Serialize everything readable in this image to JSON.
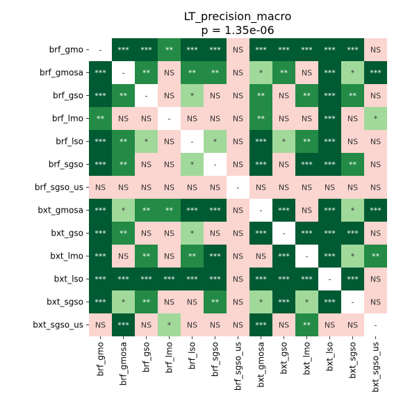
{
  "chart_data": {
    "type": "heatmap",
    "title": "LT_precision_macro",
    "subtitle": "p = 1.35e-06",
    "labels": [
      "brf_gmo",
      "brf_gmosa",
      "brf_gso",
      "brf_lmo",
      "brf_lso",
      "brf_sgso",
      "brf_sgso_us",
      "bxt_gmosa",
      "bxt_gso",
      "bxt_lmo",
      "bxt_lso",
      "bxt_sgso",
      "bxt_sgso_us"
    ],
    "matrix": [
      [
        "-",
        "***",
        "***",
        "**",
        "***",
        "***",
        "NS",
        "***",
        "***",
        "***",
        "***",
        "***",
        "NS"
      ],
      [
        "***",
        "-",
        "**",
        "NS",
        "**",
        "**",
        "NS",
        "*",
        "**",
        "NS",
        "***",
        "*",
        "***"
      ],
      [
        "***",
        "**",
        "-",
        "NS",
        "*",
        "NS",
        "NS",
        "**",
        "NS",
        "**",
        "***",
        "**",
        "NS"
      ],
      [
        "**",
        "NS",
        "NS",
        "-",
        "NS",
        "NS",
        "NS",
        "**",
        "NS",
        "NS",
        "***",
        "NS",
        "*"
      ],
      [
        "***",
        "**",
        "*",
        "NS",
        "-",
        "*",
        "NS",
        "***",
        "*",
        "**",
        "***",
        "NS",
        "NS"
      ],
      [
        "***",
        "**",
        "NS",
        "NS",
        "*",
        "-",
        "NS",
        "***",
        "NS",
        "***",
        "***",
        "**",
        "NS"
      ],
      [
        "NS",
        "NS",
        "NS",
        "NS",
        "NS",
        "NS",
        "-",
        "NS",
        "NS",
        "NS",
        "NS",
        "NS",
        "NS"
      ],
      [
        "***",
        "*",
        "**",
        "**",
        "***",
        "***",
        "NS",
        "-",
        "***",
        "NS",
        "***",
        "*",
        "***"
      ],
      [
        "***",
        "**",
        "NS",
        "NS",
        "*",
        "NS",
        "NS",
        "***",
        "-",
        "***",
        "***",
        "***",
        "NS"
      ],
      [
        "***",
        "NS",
        "**",
        "NS",
        "**",
        "***",
        "NS",
        "NS",
        "***",
        "-",
        "***",
        "*",
        "**"
      ],
      [
        "***",
        "***",
        "***",
        "***",
        "***",
        "***",
        "NS",
        "***",
        "***",
        "***",
        "-",
        "***",
        "NS"
      ],
      [
        "***",
        "*",
        "**",
        "NS",
        "NS",
        "**",
        "NS",
        "*",
        "***",
        "*",
        "***",
        "-",
        "NS"
      ],
      [
        "NS",
        "***",
        "NS",
        "*",
        "NS",
        "NS",
        "NS",
        "***",
        "NS",
        "**",
        "NS",
        "NS",
        "-"
      ]
    ],
    "colors": {
      "***": "#005a32",
      "**": "#238b45",
      "*": "#a1d99b",
      "NS": "#fbd5d0",
      "-": "#ffffff"
    },
    "text_colors": {
      "***": "#ffffff",
      "**": "#ffffff",
      "*": "#333333",
      "NS": "#333333",
      "-": "#333333"
    }
  }
}
